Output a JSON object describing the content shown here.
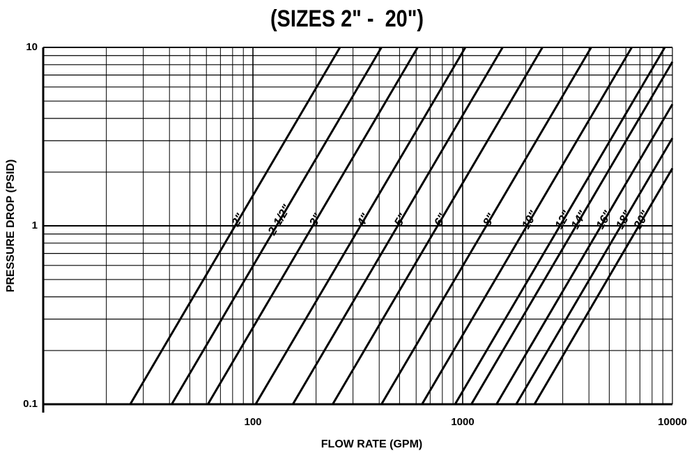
{
  "chart_data": {
    "type": "line",
    "title": "(SIZES 2\" -  20\")",
    "xlabel": "FLOW RATE (GPM)",
    "ylabel": "PRESSURE DROP (PSID)",
    "x_scale": "log",
    "y_scale": "log",
    "xlim": [
      10,
      10000
    ],
    "ylim": [
      0.1,
      10
    ],
    "x_ticks": [
      100,
      1000,
      10000
    ],
    "x_tick_labels": [
      "100",
      "1000",
      "10000"
    ],
    "y_ticks": [
      0.1,
      1,
      10
    ],
    "y_tick_labels": [
      "0.1",
      "1",
      "10"
    ],
    "grid": true,
    "series": [
      {
        "name": "2\"",
        "x": [
          26,
          260
        ],
        "y": [
          0.1,
          10
        ]
      },
      {
        "name": "2-1/2\"",
        "x": [
          41,
          410
        ],
        "y": [
          0.1,
          10
        ]
      },
      {
        "name": "3\"",
        "x": [
          61,
          610
        ],
        "y": [
          0.1,
          10
        ]
      },
      {
        "name": "4\"",
        "x": [
          103,
          1030
        ],
        "y": [
          0.1,
          10
        ]
      },
      {
        "name": "5\"",
        "x": [
          155,
          1550
        ],
        "y": [
          0.1,
          10
        ]
      },
      {
        "name": "6\"",
        "x": [
          240,
          2400
        ],
        "y": [
          0.1,
          10
        ]
      },
      {
        "name": "8\"",
        "x": [
          410,
          4100
        ],
        "y": [
          0.1,
          10
        ]
      },
      {
        "name": "10\"",
        "x": [
          640,
          6400
        ],
        "y": [
          0.1,
          10
        ]
      },
      {
        "name": "12\"",
        "x": [
          920,
          9200
        ],
        "y": [
          0.1,
          10
        ]
      },
      {
        "name": "14\"",
        "x": [
          1100,
          10000
        ],
        "y": [
          0.1,
          8.3
        ]
      },
      {
        "name": "16\"",
        "x": [
          1450,
          10000
        ],
        "y": [
          0.1,
          4.8
        ]
      },
      {
        "name": "18\"",
        "x": [
          1800,
          10000
        ],
        "y": [
          0.1,
          3.1
        ]
      },
      {
        "name": "20\"",
        "x": [
          2200,
          10000
        ],
        "y": [
          0.1,
          2.1
        ]
      }
    ]
  }
}
